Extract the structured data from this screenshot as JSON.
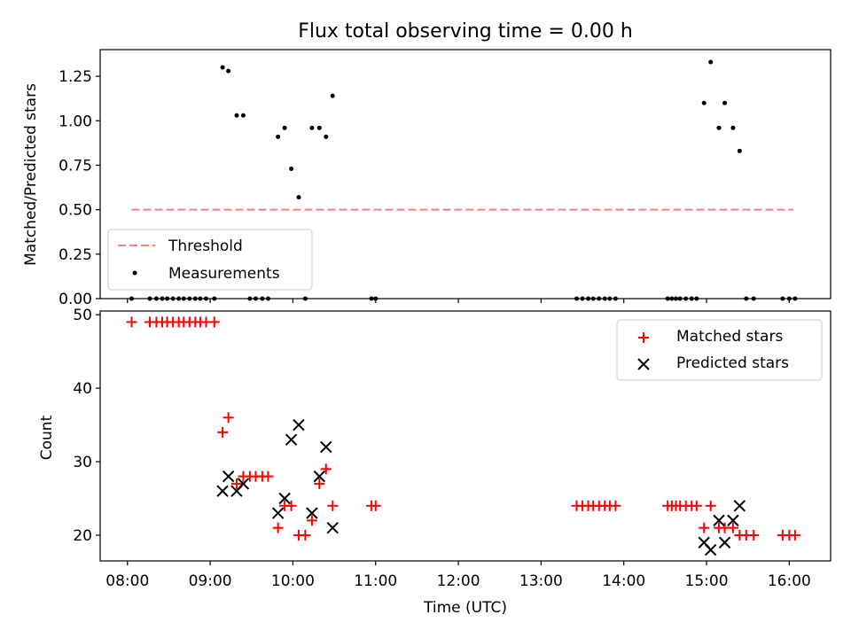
{
  "chart_data": [
    {
      "type": "scatter",
      "title": "Flux total observing time = 0.00 h",
      "ylabel": "Matched/Predicted stars",
      "xlim": [
        7.67,
        16.5
      ],
      "ylim": [
        0,
        1.4
      ],
      "yticks": [
        0.0,
        0.25,
        0.5,
        0.75,
        1.0,
        1.25
      ],
      "ytick_labels": [
        "0.00",
        "0.25",
        "0.50",
        "0.75",
        "1.00",
        "1.25"
      ],
      "grid": false,
      "legend_position": "lower-left",
      "threshold": {
        "name": "Threshold",
        "color": "#ff7f7f",
        "y": 0.5,
        "x": [
          8.05,
          16.05
        ]
      },
      "series": [
        {
          "name": "Measurements",
          "color": "#000000",
          "x": [
            8.05,
            8.27,
            8.35,
            8.42,
            8.48,
            8.55,
            8.62,
            8.68,
            8.75,
            8.82,
            8.88,
            8.95,
            9.05,
            9.15,
            9.22,
            9.32,
            9.4,
            9.48,
            9.55,
            9.63,
            9.7,
            9.82,
            9.9,
            9.98,
            10.07,
            10.15,
            10.23,
            10.32,
            10.4,
            10.48,
            10.95,
            11.0,
            13.43,
            13.5,
            13.57,
            13.63,
            13.7,
            13.77,
            13.83,
            13.9,
            14.53,
            14.58,
            14.63,
            14.68,
            14.75,
            14.82,
            14.88,
            14.97,
            15.05,
            15.15,
            15.22,
            15.32,
            15.4,
            15.48,
            15.57,
            15.92,
            16.0,
            16.07
          ],
          "y": [
            0,
            0,
            0,
            0,
            0,
            0,
            0,
            0,
            0,
            0,
            0,
            0,
            0,
            1.3,
            1.28,
            1.03,
            1.03,
            0,
            0,
            0,
            0,
            0.91,
            0.96,
            0.73,
            0.57,
            0,
            0.96,
            0.96,
            0.91,
            1.14,
            0,
            0,
            0,
            0,
            0,
            0,
            0,
            0,
            0,
            0,
            0,
            0,
            0,
            0,
            0,
            0,
            0,
            1.1,
            1.33,
            0.96,
            1.1,
            0.96,
            0.83,
            0,
            0,
            0,
            0,
            0
          ]
        }
      ]
    },
    {
      "type": "scatter",
      "xlabel": "Time (UTC)",
      "ylabel": "Count",
      "xlim": [
        7.67,
        16.5
      ],
      "ylim": [
        16.5,
        50.5
      ],
      "xticks": [
        8,
        9,
        10,
        11,
        12,
        13,
        14,
        15,
        16
      ],
      "xtick_labels": [
        "08:00",
        "09:00",
        "10:00",
        "11:00",
        "12:00",
        "13:00",
        "14:00",
        "15:00",
        "16:00"
      ],
      "yticks": [
        20,
        30,
        40,
        50
      ],
      "ytick_labels": [
        "20",
        "30",
        "40",
        "50"
      ],
      "grid": false,
      "legend_position": "upper-right",
      "series": [
        {
          "name": "Matched stars",
          "color": "#ff0000",
          "marker": "plus",
          "x": [
            8.05,
            8.27,
            8.35,
            8.42,
            8.48,
            8.55,
            8.62,
            8.68,
            8.75,
            8.82,
            8.88,
            8.95,
            9.05,
            9.15,
            9.22,
            9.32,
            9.4,
            9.48,
            9.55,
            9.63,
            9.7,
            9.82,
            9.9,
            9.98,
            10.07,
            10.15,
            10.23,
            10.32,
            10.4,
            10.48,
            10.95,
            11.0,
            13.43,
            13.5,
            13.57,
            13.63,
            13.7,
            13.77,
            13.83,
            13.9,
            14.53,
            14.58,
            14.63,
            14.68,
            14.75,
            14.82,
            14.88,
            14.97,
            15.05,
            15.15,
            15.22,
            15.32,
            15.4,
            15.48,
            15.57,
            15.92,
            16.0,
            16.07
          ],
          "y": [
            49,
            49,
            49,
            49,
            49,
            49,
            49,
            49,
            49,
            49,
            49,
            49,
            49,
            34,
            36,
            27,
            28,
            28,
            28,
            28,
            28,
            21,
            24,
            24,
            20,
            20,
            22,
            27,
            29,
            24,
            24,
            24,
            24,
            24,
            24,
            24,
            24,
            24,
            24,
            24,
            24,
            24,
            24,
            24,
            24,
            24,
            24,
            21,
            24,
            21,
            21,
            21,
            20,
            20,
            20,
            20,
            20,
            20
          ]
        },
        {
          "name": "Predicted stars",
          "color": "#000000",
          "marker": "x",
          "x": [
            9.15,
            9.22,
            9.32,
            9.4,
            9.82,
            9.9,
            9.98,
            10.07,
            10.23,
            10.32,
            10.4,
            10.48,
            14.97,
            15.05,
            15.15,
            15.22,
            15.32,
            15.4
          ],
          "y": [
            26,
            28,
            26,
            27,
            23,
            25,
            33,
            35,
            23,
            28,
            32,
            21,
            19,
            18,
            22,
            19,
            22,
            24
          ]
        }
      ]
    }
  ]
}
